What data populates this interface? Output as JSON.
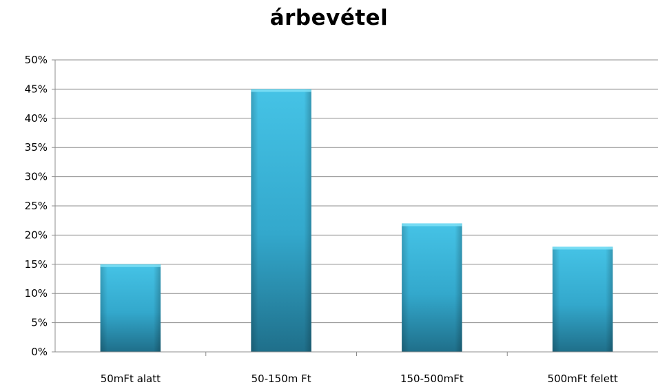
{
  "chart_data": {
    "type": "bar",
    "title": "árbevétel",
    "categories": [
      "50mFt alatt",
      "50-150m Ft",
      "150-500mFt",
      "500mFt felett"
    ],
    "values": [
      15,
      45,
      22,
      18
    ],
    "ylim": [
      0,
      50
    ],
    "yticks": [
      "0%",
      "5%",
      "10%",
      "15%",
      "20%",
      "25%",
      "30%",
      "35%",
      "40%",
      "45%",
      "50%"
    ],
    "xlabel": "",
    "ylabel": "",
    "grid": true,
    "legend": false,
    "bar_color": "#3bb6d9"
  }
}
